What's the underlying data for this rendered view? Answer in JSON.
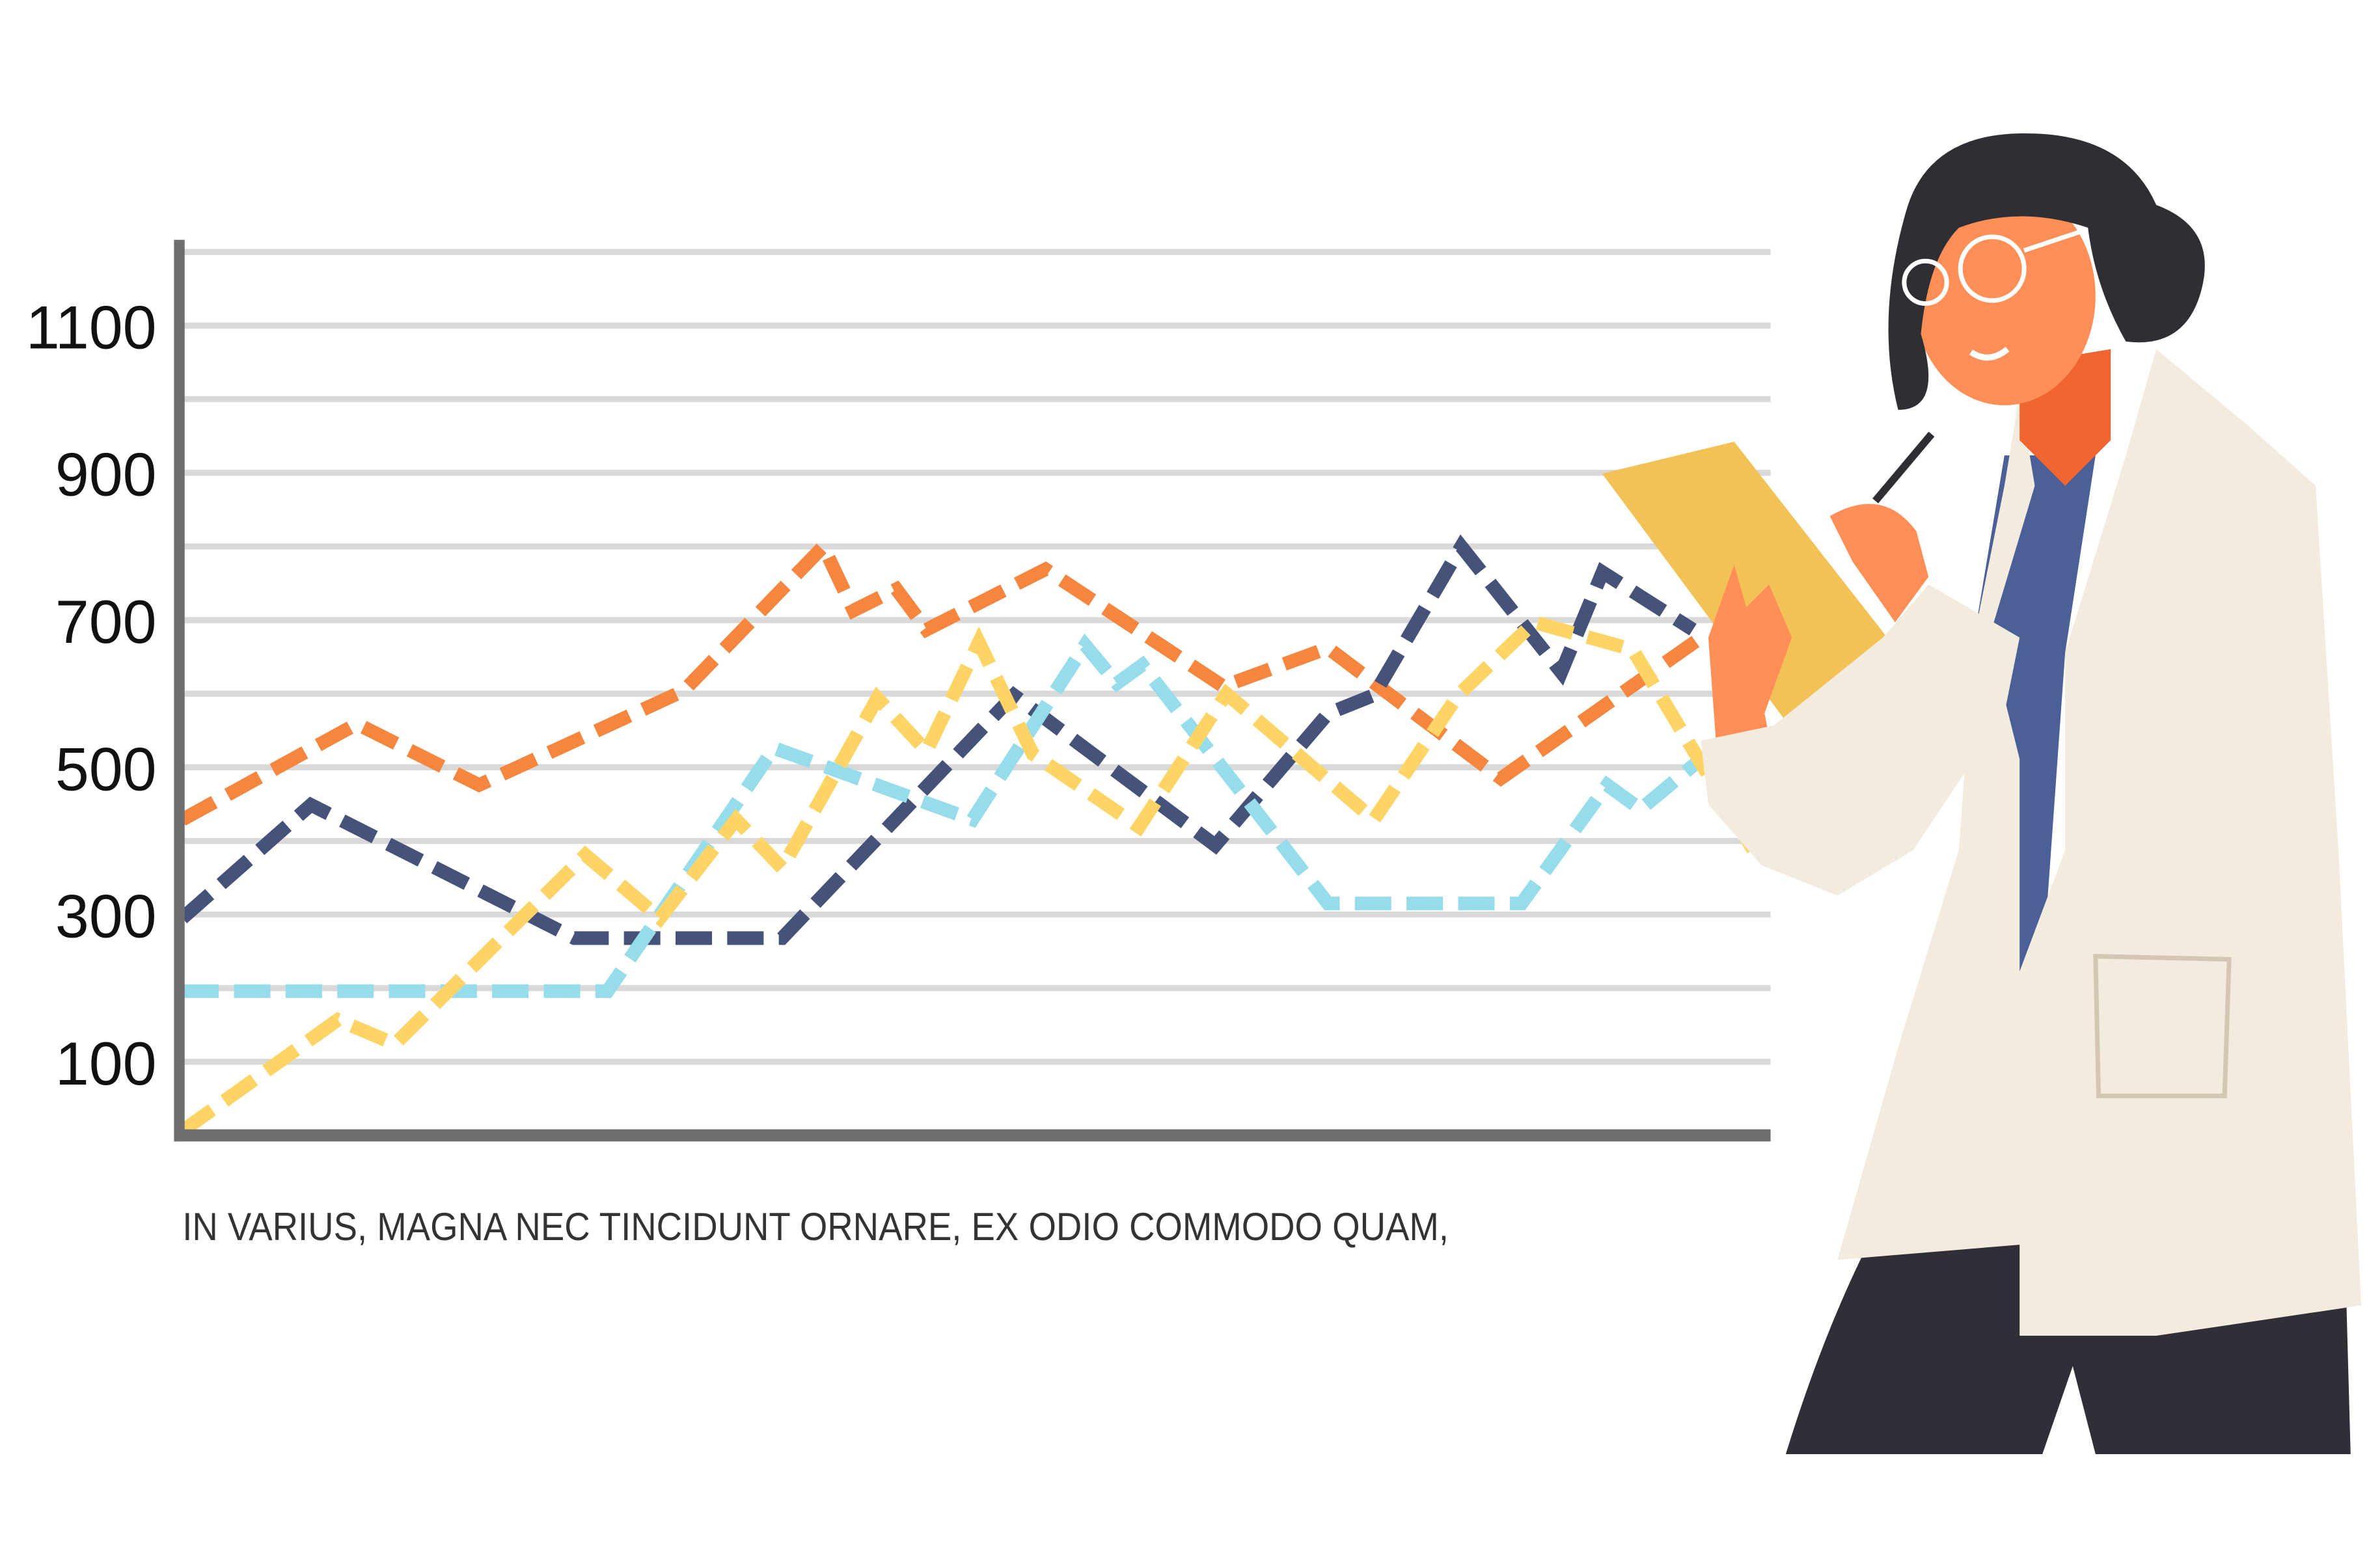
{
  "chart_data": {
    "type": "line",
    "title": "",
    "xlabel": "",
    "ylabel": "",
    "caption": "IN VARIUS, MAGNA NEC TINCIDUNT ORNARE, EX ODIO COMMODO QUAM,",
    "xlim": [
      0,
      100
    ],
    "ylim": [
      0,
      1200
    ],
    "y_ticks": [
      100,
      300,
      500,
      700,
      900,
      1100
    ],
    "gridlines": [
      100,
      200,
      300,
      400,
      500,
      600,
      700,
      800,
      900,
      1000,
      1100,
      1200
    ],
    "grid": true,
    "line_style": "dashed",
    "colors": {
      "grid": "#D9D9D9",
      "axis": "#6E6E6E"
    },
    "series": [
      {
        "color": "#F5863F",
        "points": [
          [
            0,
            429
          ],
          [
            11,
            559
          ],
          [
            18.7,
            476
          ],
          [
            31.6,
            604
          ],
          [
            40.4,
            800
          ],
          [
            42.3,
            713
          ],
          [
            45,
            742
          ],
          [
            46.9,
            687
          ],
          [
            54.4,
            769
          ],
          [
            65.6,
            610
          ],
          [
            72.2,
            662
          ],
          [
            83.1,
            485
          ],
          [
            95.7,
            676
          ]
        ]
      },
      {
        "color": "#45527A",
        "points": [
          [
            0,
            295
          ],
          [
            8.1,
            449
          ],
          [
            24.7,
            268
          ],
          [
            37.8,
            268
          ],
          [
            52.4,
            598
          ],
          [
            65.1,
            394
          ],
          [
            72.2,
            573
          ],
          [
            75.1,
            598
          ],
          [
            80.6,
            800
          ],
          [
            86.9,
            629
          ],
          [
            89.5,
            765
          ],
          [
            95.2,
            687
          ]
        ]
      },
      {
        "color": "#97DCEB",
        "points": [
          [
            0,
            196
          ],
          [
            26.8,
            196
          ],
          [
            37.3,
            526
          ],
          [
            49.8,
            429
          ],
          [
            56.9,
            666
          ],
          [
            58.9,
            614
          ],
          [
            60.5,
            639
          ],
          [
            72.2,
            315
          ],
          [
            84.4,
            315
          ],
          [
            89.8,
            476
          ],
          [
            91.9,
            443
          ],
          [
            95.7,
            511
          ]
        ]
      },
      {
        "color": "#FDD465",
        "points": [
          [
            0,
            6
          ],
          [
            9.8,
            157
          ],
          [
            13.4,
            124
          ],
          [
            25.4,
            381
          ],
          [
            30.1,
            295
          ],
          [
            34.9,
            429
          ],
          [
            37.8,
            363
          ],
          [
            43.8,
            594
          ],
          [
            46.9,
            522
          ],
          [
            50.2,
            670
          ],
          [
            53.6,
            518
          ],
          [
            60.3,
            419
          ],
          [
            65.8,
            600
          ],
          [
            75.1,
            429
          ],
          [
            80.4,
            598
          ],
          [
            85.2,
            697
          ],
          [
            91.4,
            660
          ],
          [
            99,
            388
          ]
        ]
      }
    ]
  },
  "illustration": {
    "subject": "woman-with-clipboard-icon"
  }
}
